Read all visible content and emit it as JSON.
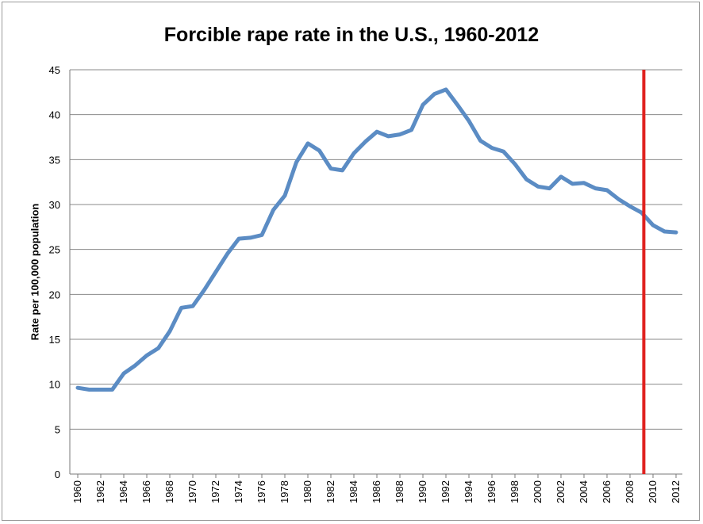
{
  "chart_data": {
    "type": "line",
    "title": "Forcible rape rate in the U.S., 1960-2012",
    "xlabel": "",
    "ylabel": "Rate per 100,000 population",
    "ylim": [
      0,
      45
    ],
    "yticks": [
      0,
      5,
      10,
      15,
      20,
      25,
      30,
      35,
      40,
      45
    ],
    "xlim": [
      1960,
      2012
    ],
    "xticks": [
      1960,
      1962,
      1964,
      1966,
      1968,
      1970,
      1972,
      1974,
      1976,
      1978,
      1980,
      1982,
      1984,
      1986,
      1988,
      1990,
      1992,
      1994,
      1996,
      1998,
      2000,
      2002,
      2004,
      2006,
      2008,
      2010,
      2012
    ],
    "grid": true,
    "legend": "none",
    "series": [
      {
        "color": "#5b8cc4",
        "x": [
          1960,
          1961,
          1962,
          1963,
          1964,
          1965,
          1966,
          1967,
          1968,
          1969,
          1970,
          1971,
          1972,
          1973,
          1974,
          1975,
          1976,
          1977,
          1978,
          1979,
          1980,
          1981,
          1982,
          1983,
          1984,
          1985,
          1986,
          1987,
          1988,
          1989,
          1990,
          1991,
          1992,
          1993,
          1994,
          1995,
          1996,
          1997,
          1998,
          1999,
          2000,
          2001,
          2002,
          2003,
          2004,
          2005,
          2006,
          2007,
          2008,
          2009,
          2010,
          2011,
          2012
        ],
        "values": [
          9.6,
          9.4,
          9.4,
          9.4,
          11.2,
          12.1,
          13.2,
          14.0,
          15.9,
          18.5,
          18.7,
          20.5,
          22.5,
          24.5,
          26.2,
          26.3,
          26.6,
          29.4,
          31.0,
          34.7,
          36.8,
          36.0,
          34.0,
          33.8,
          35.7,
          37.0,
          38.1,
          37.6,
          37.8,
          38.3,
          41.1,
          42.3,
          42.8,
          41.1,
          39.3,
          37.1,
          36.3,
          35.9,
          34.5,
          32.8,
          32.0,
          31.8,
          33.1,
          32.3,
          32.4,
          31.8,
          31.6,
          30.6,
          29.8,
          29.1,
          27.7,
          27.0,
          26.9
        ]
      }
    ],
    "marker_line": {
      "x": 2009.2,
      "color": "#e0211e"
    }
  }
}
